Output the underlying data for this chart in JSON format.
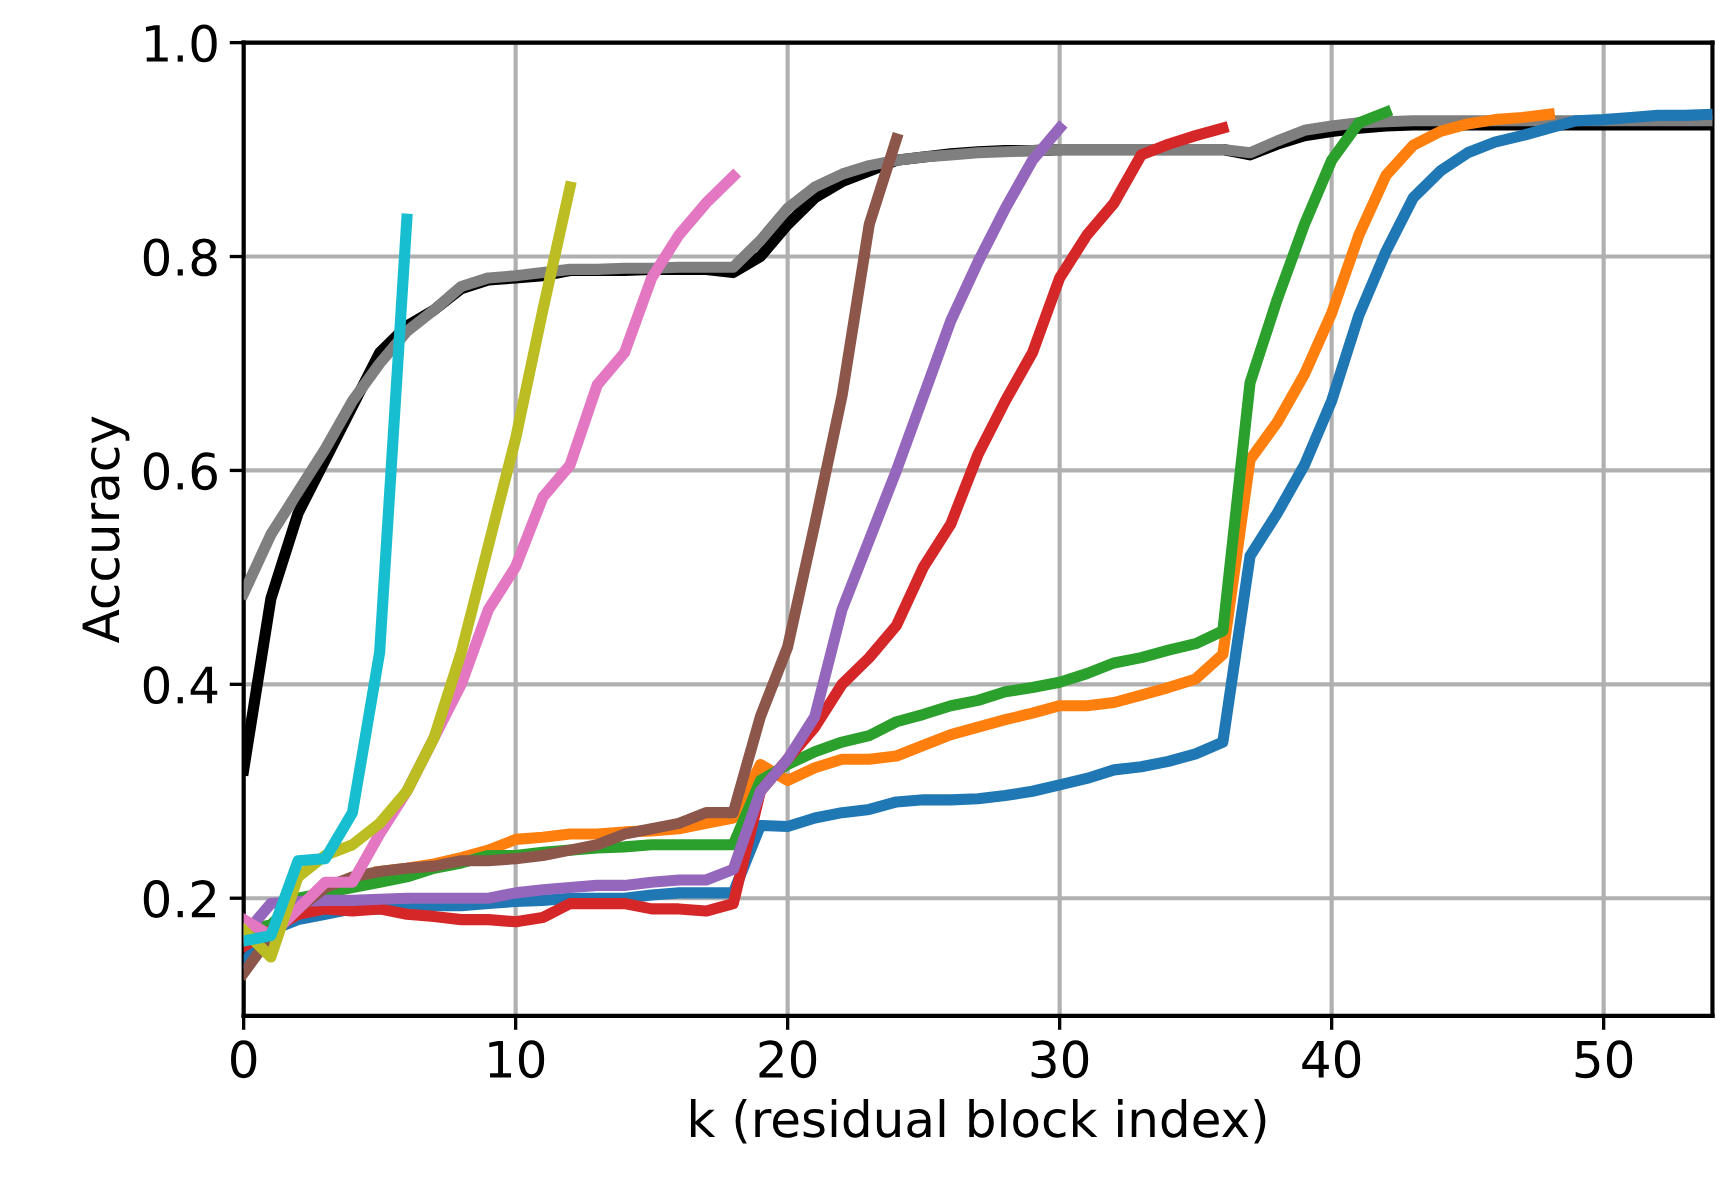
{
  "chart_data": {
    "type": "line",
    "xlabel": "k (residual block index)",
    "ylabel": "Accuracy",
    "xlim": [
      0,
      54
    ],
    "ylim": [
      0.09,
      1.0
    ],
    "xticks": [
      0,
      10,
      20,
      30,
      40,
      50
    ],
    "yticks": [
      0.2,
      0.4,
      0.6,
      0.8,
      {
        "value": 1.0,
        "label": "1.0"
      }
    ],
    "grid": true,
    "line_style": "solid",
    "marker": "none",
    "series": [
      {
        "color": "#000000",
        "x": [
          0,
          1,
          2,
          3,
          4,
          5,
          6,
          7,
          8,
          9,
          10,
          11,
          12,
          13,
          14,
          15,
          16,
          17,
          18,
          19,
          20,
          21,
          22,
          23,
          24,
          25,
          26,
          27,
          28,
          29,
          30,
          31,
          32,
          33,
          34,
          35,
          36,
          37,
          38,
          39,
          40,
          41,
          42,
          43,
          44,
          45,
          46,
          47,
          48,
          49,
          50,
          51,
          52,
          53,
          54
        ],
        "values": [
          0.32,
          0.48,
          0.56,
          0.61,
          0.66,
          0.71,
          0.735,
          0.75,
          0.77,
          0.778,
          0.78,
          0.782,
          0.787,
          0.787,
          0.787,
          0.788,
          0.788,
          0.788,
          0.785,
          0.8,
          0.83,
          0.855,
          0.87,
          0.88,
          0.89,
          0.893,
          0.896,
          0.898,
          0.899,
          0.899,
          0.9,
          0.9,
          0.9,
          0.9,
          0.9,
          0.9,
          0.9,
          0.895,
          0.905,
          0.913,
          0.917,
          0.92,
          0.922,
          0.923,
          0.923,
          0.923,
          0.923,
          0.923,
          0.923,
          0.923,
          0.923,
          0.923,
          0.923,
          0.923,
          0.923
        ]
      },
      {
        "color": "#7f7f7f",
        "x": [
          0,
          1,
          2,
          3,
          4,
          5,
          6,
          7,
          8,
          9,
          10,
          11,
          12,
          13,
          14,
          15,
          16,
          17,
          18,
          19,
          20,
          21,
          22,
          23,
          24,
          25,
          26,
          27,
          28,
          29,
          30,
          31,
          32,
          33,
          34,
          35,
          36,
          37,
          38,
          39,
          40,
          41,
          42,
          43,
          44,
          45,
          46,
          47,
          48,
          49,
          50,
          51,
          52,
          53,
          54
        ],
        "values": [
          0.485,
          0.54,
          0.58,
          0.62,
          0.665,
          0.7,
          0.73,
          0.75,
          0.772,
          0.78,
          0.782,
          0.785,
          0.788,
          0.788,
          0.789,
          0.789,
          0.79,
          0.79,
          0.79,
          0.815,
          0.845,
          0.865,
          0.877,
          0.885,
          0.89,
          0.893,
          0.895,
          0.897,
          0.898,
          0.899,
          0.9,
          0.9,
          0.9,
          0.9,
          0.9,
          0.9,
          0.9,
          0.897,
          0.908,
          0.918,
          0.922,
          0.925,
          0.926,
          0.927,
          0.927,
          0.927,
          0.927,
          0.927,
          0.927,
          0.927,
          0.927,
          0.927,
          0.927,
          0.927,
          0.927
        ]
      },
      {
        "color": "#1f77b4",
        "x": [
          0,
          1,
          2,
          3,
          4,
          5,
          6,
          7,
          8,
          9,
          10,
          11,
          12,
          13,
          14,
          15,
          16,
          17,
          18,
          19,
          20,
          21,
          22,
          23,
          24,
          25,
          26,
          27,
          28,
          29,
          30,
          31,
          32,
          33,
          34,
          35,
          36,
          37,
          38,
          39,
          40,
          41,
          42,
          43,
          44,
          45,
          46,
          47,
          48,
          49,
          50,
          51,
          52,
          53,
          54
        ],
        "values": [
          0.14,
          0.17,
          0.18,
          0.185,
          0.19,
          0.19,
          0.19,
          0.193,
          0.193,
          0.195,
          0.197,
          0.198,
          0.2,
          0.2,
          0.2,
          0.203,
          0.205,
          0.205,
          0.205,
          0.268,
          0.267,
          0.275,
          0.28,
          0.283,
          0.29,
          0.292,
          0.292,
          0.293,
          0.296,
          0.3,
          0.306,
          0.312,
          0.32,
          0.323,
          0.328,
          0.335,
          0.346,
          0.52,
          0.56,
          0.605,
          0.665,
          0.745,
          0.805,
          0.855,
          0.88,
          0.897,
          0.907,
          0.913,
          0.92,
          0.927,
          0.928,
          0.93,
          0.932,
          0.932,
          0.933
        ]
      },
      {
        "color": "#ff7f0e",
        "x": [
          5,
          6,
          7,
          8,
          9,
          10,
          11,
          12,
          13,
          14,
          15,
          16,
          17,
          18,
          19,
          20,
          21,
          22,
          23,
          24,
          25,
          26,
          27,
          28,
          29,
          30,
          31,
          32,
          33,
          34,
          35,
          36,
          37,
          38,
          39,
          40,
          41,
          42,
          43,
          44,
          45,
          46,
          47,
          48
        ],
        "values": [
          0.225,
          0.228,
          0.232,
          0.238,
          0.245,
          0.255,
          0.257,
          0.26,
          0.26,
          0.262,
          0.263,
          0.265,
          0.27,
          0.275,
          0.325,
          0.31,
          0.322,
          0.33,
          0.33,
          0.333,
          0.343,
          0.353,
          0.36,
          0.367,
          0.373,
          0.38,
          0.38,
          0.383,
          0.39,
          0.397,
          0.405,
          0.428,
          0.61,
          0.645,
          0.69,
          0.747,
          0.82,
          0.876,
          0.904,
          0.917,
          0.924,
          0.928,
          0.93,
          0.933
        ]
      },
      {
        "color": "#2ca02c",
        "x": [
          0,
          1,
          2,
          3,
          4,
          5,
          6,
          7,
          8,
          9,
          10,
          11,
          12,
          13,
          14,
          15,
          16,
          17,
          18,
          19,
          20,
          21,
          22,
          23,
          24,
          25,
          26,
          27,
          28,
          29,
          30,
          31,
          32,
          33,
          34,
          35,
          36,
          37,
          38,
          39,
          40,
          41,
          42
        ],
        "values": [
          0.17,
          0.175,
          0.2,
          0.205,
          0.21,
          0.215,
          0.22,
          0.228,
          0.233,
          0.24,
          0.24,
          0.243,
          0.245,
          0.247,
          0.248,
          0.25,
          0.25,
          0.25,
          0.25,
          0.31,
          0.325,
          0.337,
          0.346,
          0.352,
          0.365,
          0.372,
          0.38,
          0.385,
          0.393,
          0.397,
          0.402,
          0.41,
          0.42,
          0.425,
          0.432,
          0.438,
          0.45,
          0.682,
          0.76,
          0.83,
          0.89,
          0.925,
          0.935
        ]
      },
      {
        "color": "#d62728",
        "x": [
          0,
          1,
          2,
          3,
          4,
          5,
          6,
          7,
          8,
          9,
          10,
          11,
          12,
          13,
          14,
          15,
          16,
          17,
          18,
          19,
          20,
          21,
          22,
          23,
          24,
          25,
          26,
          27,
          28,
          29,
          30,
          31,
          32,
          33,
          34,
          35,
          36
        ],
        "values": [
          0.155,
          0.17,
          0.185,
          0.19,
          0.188,
          0.19,
          0.185,
          0.183,
          0.18,
          0.18,
          0.178,
          0.182,
          0.195,
          0.195,
          0.195,
          0.19,
          0.19,
          0.188,
          0.195,
          0.3,
          0.33,
          0.36,
          0.4,
          0.425,
          0.455,
          0.51,
          0.55,
          0.615,
          0.665,
          0.71,
          0.78,
          0.82,
          0.85,
          0.895,
          0.905,
          0.913,
          0.92
        ]
      },
      {
        "color": "#9467bd",
        "x": [
          0,
          1,
          2,
          3,
          4,
          5,
          6,
          7,
          8,
          9,
          10,
          11,
          12,
          13,
          14,
          15,
          16,
          17,
          18,
          19,
          20,
          21,
          22,
          23,
          24,
          25,
          26,
          27,
          28,
          29,
          30
        ],
        "values": [
          0.165,
          0.195,
          0.197,
          0.198,
          0.198,
          0.199,
          0.2,
          0.2,
          0.2,
          0.2,
          0.205,
          0.208,
          0.21,
          0.212,
          0.212,
          0.215,
          0.217,
          0.217,
          0.227,
          0.3,
          0.33,
          0.37,
          0.47,
          0.535,
          0.6,
          0.67,
          0.74,
          0.795,
          0.845,
          0.89,
          0.92
        ]
      },
      {
        "color": "#8c564b",
        "x": [
          0,
          1,
          2,
          3,
          4,
          5,
          6,
          7,
          8,
          9,
          10,
          11,
          12,
          13,
          14,
          15,
          16,
          17,
          18,
          19,
          20,
          21,
          22,
          23,
          24
        ],
        "values": [
          0.13,
          0.165,
          0.19,
          0.21,
          0.22,
          0.225,
          0.228,
          0.23,
          0.235,
          0.235,
          0.237,
          0.24,
          0.245,
          0.25,
          0.26,
          0.265,
          0.27,
          0.28,
          0.28,
          0.37,
          0.435,
          0.55,
          0.67,
          0.83,
          0.91
        ]
      },
      {
        "color": "#e377c2",
        "x": [
          0,
          1,
          2,
          3,
          4,
          5,
          6,
          7,
          8,
          9,
          10,
          11,
          12,
          13,
          14,
          15,
          16,
          17,
          18
        ],
        "values": [
          0.18,
          0.165,
          0.19,
          0.215,
          0.215,
          0.26,
          0.3,
          0.35,
          0.4,
          0.47,
          0.51,
          0.575,
          0.605,
          0.68,
          0.71,
          0.78,
          0.82,
          0.85,
          0.875
        ]
      },
      {
        "color": "#bcbd22",
        "x": [
          0,
          1,
          2,
          3,
          4,
          5,
          6,
          7,
          8,
          9,
          10,
          11,
          12
        ],
        "values": [
          0.17,
          0.145,
          0.22,
          0.24,
          0.25,
          0.27,
          0.3,
          0.35,
          0.43,
          0.53,
          0.63,
          0.75,
          0.865
        ]
      },
      {
        "color": "#17becf",
        "x": [
          0,
          1,
          2,
          3,
          4,
          5,
          6
        ],
        "values": [
          0.16,
          0.165,
          0.235,
          0.237,
          0.28,
          0.43,
          0.835
        ]
      }
    ]
  }
}
